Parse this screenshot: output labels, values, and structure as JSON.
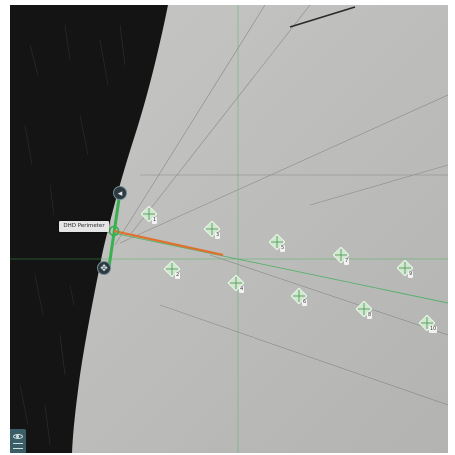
{
  "viewer": {
    "measurement_tag": "DHD Perimeter",
    "handle_top_glyph": "◂",
    "handle_bottom_glyph": "✥",
    "colors": {
      "dark_region": "#141414",
      "sample_surface": "#bcbcba",
      "guide_line": "#3fae5a",
      "measure_line": "#e0702e",
      "indent_marker": "#cfe8cf"
    }
  },
  "indents": [
    {
      "label": "1"
    },
    {
      "label": "2"
    },
    {
      "label": "3"
    },
    {
      "label": "4"
    },
    {
      "label": "5"
    },
    {
      "label": "6"
    },
    {
      "label": "7"
    },
    {
      "label": "8"
    },
    {
      "label": "9"
    },
    {
      "label": "10"
    }
  ],
  "corner_button": {
    "icon": "eye-icon"
  }
}
